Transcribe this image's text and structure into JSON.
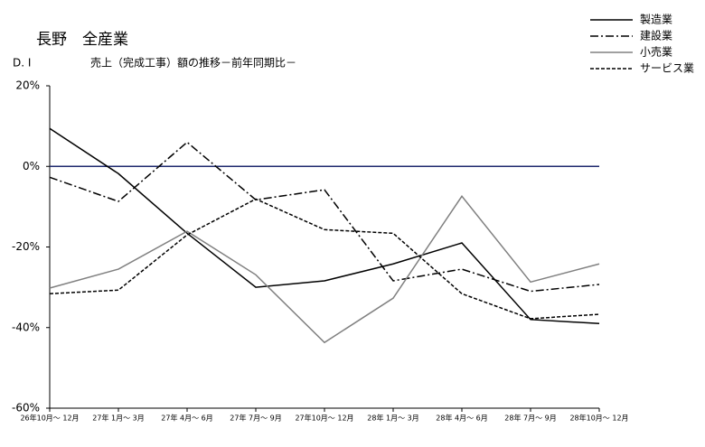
{
  "chart_data": {
    "type": "line",
    "title": "長野　全産業",
    "subtitle": "D. I",
    "caption": "売上（完成工事）額の推移－前年同期比－",
    "categories": [
      "26年10月～ 12月",
      "27年 1月～ 3月",
      "27年 4月～ 6月",
      "27年 7月～ 9月",
      "27年10月～ 12月",
      "28年 1月～ 3月",
      "28年 4月～ 6月",
      "28年 7月～ 9月",
      "28年10月～ 12月"
    ],
    "series": [
      {
        "name": "製造業",
        "color": "#000000",
        "dash": "none",
        "values": [
          9.4,
          -1.8,
          -16.6,
          -30,
          -28.4,
          -24.2,
          -19,
          -38,
          -39
        ]
      },
      {
        "name": "建設業",
        "color": "#000000",
        "dash": "9,3,2,3",
        "values": [
          -2.7,
          -8.7,
          6,
          -8.3,
          -5.8,
          -28.4,
          -25.5,
          -31,
          -29.3
        ]
      },
      {
        "name": "小売業",
        "color": "#808080",
        "dash": "none",
        "values": [
          -30.2,
          -25.5,
          -16.1,
          -26.9,
          -43.7,
          -32.7,
          -7.4,
          -28.7,
          -24.2
        ]
      },
      {
        "name": "サービス業",
        "color": "#000000",
        "dash": "4,2",
        "values": [
          -31.6,
          -30.7,
          -17,
          -8.1,
          -15.7,
          -16.6,
          -31.6,
          -37.8,
          -36.7
        ]
      }
    ],
    "ylim": [
      -60,
      20
    ],
    "yticks": [
      {
        "value": 20,
        "label": "20%"
      },
      {
        "value": 0,
        "label": "0%"
      },
      {
        "value": -20,
        "label": "-20%"
      },
      {
        "value": -40,
        "label": "-40%"
      },
      {
        "value": -60,
        "label": "-60%"
      }
    ],
    "zero_line_color": "#1f2a6e"
  }
}
